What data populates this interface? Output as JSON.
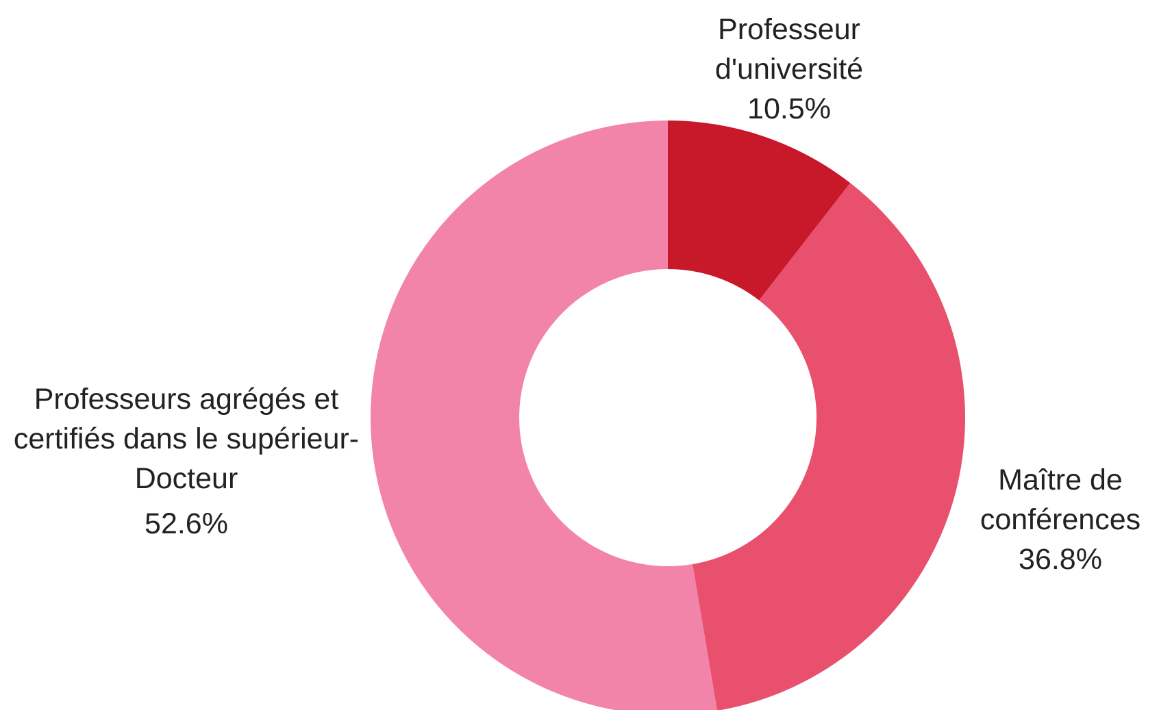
{
  "chart_data": {
    "type": "donut",
    "categories": [
      "Professeur d'université",
      "Maître de conférences",
      "Professeurs agrégés et certifiés dans le supérieur-Docteur"
    ],
    "values": [
      10.5,
      36.8,
      52.6
    ],
    "value_labels": [
      "10.5%",
      "36.8%",
      "52.6%"
    ],
    "colors": [
      "#c8192a",
      "#e8506e",
      "#f283a9"
    ]
  }
}
